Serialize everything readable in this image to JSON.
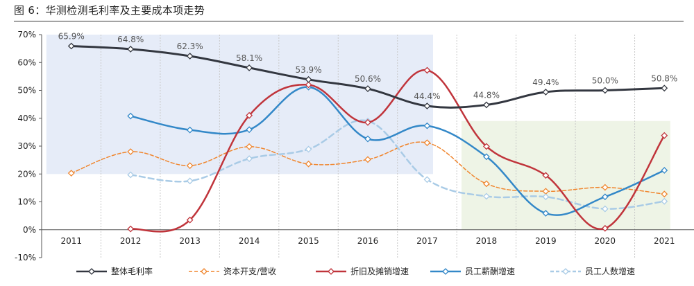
{
  "figure": {
    "title": "图 6：华测检测毛利率及主要成本项走势"
  },
  "chart_data": {
    "type": "line",
    "categories": [
      "2011",
      "2012",
      "2013",
      "2014",
      "2015",
      "2016",
      "2017",
      "2018",
      "2019",
      "2020",
      "2021"
    ],
    "ylim": [
      -10,
      70
    ],
    "yticks": [
      "-10%",
      "0%",
      "10%",
      "20%",
      "30%",
      "40%",
      "50%",
      "60%",
      "70%"
    ],
    "grid": "vertical dashed",
    "legend_position": "bottom",
    "series": [
      {
        "name": "整体毛利率",
        "color": "#333740",
        "style": "solid",
        "width": 3,
        "values": [
          65.9,
          64.8,
          62.3,
          58.1,
          53.9,
          50.6,
          44.4,
          44.8,
          49.4,
          50.0,
          50.8
        ],
        "data_labels": [
          "65.9%",
          "64.8%",
          "62.3%",
          "58.1%",
          "53.9%",
          "50.6%",
          "44.4%",
          "44.8%",
          "49.4%",
          "50.0%",
          "50.8%"
        ]
      },
      {
        "name": "资本开支/营收",
        "color": "#F0862E",
        "style": "dashed",
        "width": 1.5,
        "values": [
          20.3,
          28.0,
          23.0,
          29.8,
          23.6,
          25.2,
          31.2,
          16.5,
          13.8,
          15.2,
          12.8
        ]
      },
      {
        "name": "折旧及摊销增速",
        "color": "#C0343B",
        "style": "solid",
        "width": 2.5,
        "values": [
          null,
          0.3,
          3.5,
          41.0,
          52.0,
          38.5,
          57.2,
          29.9,
          19.5,
          0.5,
          33.8
        ]
      },
      {
        "name": "员工薪酬增速",
        "color": "#3388C8",
        "style": "solid",
        "width": 2.5,
        "values": [
          null,
          40.8,
          35.8,
          35.9,
          51.2,
          32.6,
          37.3,
          26.2,
          5.9,
          11.8,
          21.3
        ]
      },
      {
        "name": "员工人数增速",
        "color": "#A9CBE6",
        "style": "dashed",
        "width": 2.5,
        "values": [
          null,
          19.7,
          17.5,
          25.5,
          28.9,
          39.0,
          18.0,
          12.0,
          11.8,
          7.5,
          10.2
        ]
      }
    ],
    "shaded_regions": [
      {
        "color": "#E6ECF8",
        "from_category": "2011",
        "to_category": "2017",
        "y_range": [
          20,
          70
        ]
      },
      {
        "color": "#EEF4E6",
        "from_category": "2018",
        "to_category": "2021",
        "y_range": [
          0,
          39
        ]
      }
    ]
  }
}
